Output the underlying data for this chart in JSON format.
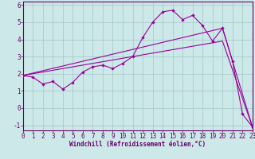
{
  "xlabel": "Windchill (Refroidissement éolien,°C)",
  "bg_color": "#cce8e8",
  "line_color": "#990099",
  "grid_color": "#aacccc",
  "spine_color": "#660066",
  "x_ticks": [
    0,
    1,
    2,
    3,
    4,
    5,
    6,
    7,
    8,
    9,
    10,
    11,
    12,
    13,
    14,
    15,
    16,
    17,
    18,
    19,
    20,
    21,
    22,
    23
  ],
  "y_ticks": [
    -1,
    0,
    1,
    2,
    3,
    4,
    5,
    6
  ],
  "xlim": [
    0,
    23
  ],
  "ylim": [
    -1.3,
    6.2
  ],
  "line1_x": [
    0,
    1,
    2,
    3,
    4,
    5,
    6,
    7,
    8,
    9,
    10,
    11,
    12,
    13,
    14,
    15,
    16,
    17,
    18,
    19,
    20,
    21,
    22,
    23
  ],
  "line1_y": [
    1.9,
    1.8,
    1.4,
    1.55,
    1.1,
    1.5,
    2.1,
    2.4,
    2.5,
    2.3,
    2.6,
    3.0,
    4.1,
    5.0,
    5.6,
    5.7,
    5.15,
    5.4,
    4.8,
    3.9,
    4.65,
    2.75,
    -0.35,
    -1.1
  ],
  "line2_x": [
    0,
    20,
    23
  ],
  "line2_y": [
    1.9,
    4.65,
    -1.1
  ],
  "line3_x": [
    0,
    20,
    23
  ],
  "line3_y": [
    1.9,
    3.9,
    -1.1
  ],
  "tick_fontsize": 5.5,
  "xlabel_fontsize": 5.5
}
